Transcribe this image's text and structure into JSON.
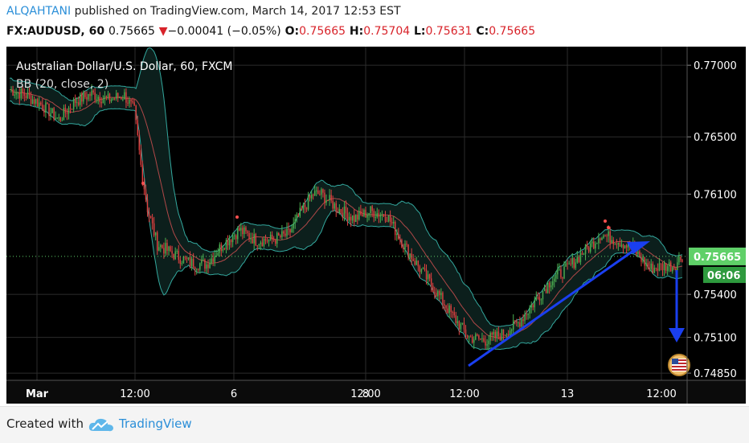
{
  "header": {
    "author": "ALQAHTANI",
    "published": "published on TradingView.com, March 14, 2017 12:53 EST",
    "symbol": "FX:AUDUSD, 60",
    "last": "0.75665",
    "change_arrow": "▼",
    "change": "−0.00041 (−0.05%)",
    "o_label": "O:",
    "o_value": "0.75665",
    "h_label": "H:",
    "h_value": "0.75704",
    "l_label": "L:",
    "l_value": "0.75631",
    "c_label": "C:",
    "c_value": "0.75665"
  },
  "chart_data": {
    "type": "candlestick",
    "title": "Australian Dollar/U.S. Dollar, 60, FXCM",
    "indicator": "BB (20, close, 2)",
    "y_ticks": [
      "0.77000",
      "0.76500",
      "0.76100",
      "0.75400",
      "0.75100",
      "0.74850"
    ],
    "y_tick_values": [
      0.77,
      0.765,
      0.761,
      0.754,
      0.751,
      0.7485
    ],
    "x_ticks": [
      "Mar",
      "12:00",
      "6",
      "12:00",
      "8",
      "12:00",
      "13",
      "12:00"
    ],
    "last_price_label": "0.75665",
    "countdown_label": "06:06",
    "ylim": [
      0.748,
      0.7713
    ],
    "price_path": [
      [
        0,
        0.7683
      ],
      [
        10,
        0.7679
      ],
      [
        20,
        0.7672
      ],
      [
        30,
        0.7662
      ],
      [
        40,
        0.7675
      ],
      [
        50,
        0.768
      ],
      [
        60,
        0.7676
      ],
      [
        70,
        0.7679
      ],
      [
        76,
        0.7668
      ],
      [
        80,
        0.763
      ],
      [
        84,
        0.76
      ],
      [
        90,
        0.7575
      ],
      [
        100,
        0.7568
      ],
      [
        110,
        0.7562
      ],
      [
        120,
        0.7561
      ],
      [
        130,
        0.7575
      ],
      [
        140,
        0.7585
      ],
      [
        150,
        0.7578
      ],
      [
        160,
        0.7578
      ],
      [
        170,
        0.7582
      ],
      [
        178,
        0.7598
      ],
      [
        185,
        0.761
      ],
      [
        190,
        0.761
      ],
      [
        200,
        0.76
      ],
      [
        210,
        0.7593
      ],
      [
        220,
        0.7598
      ],
      [
        230,
        0.7595
      ],
      [
        240,
        0.7575
      ],
      [
        250,
        0.7558
      ],
      [
        260,
        0.7542
      ],
      [
        270,
        0.7525
      ],
      [
        280,
        0.751
      ],
      [
        290,
        0.7508
      ],
      [
        300,
        0.7512
      ],
      [
        310,
        0.752
      ],
      [
        320,
        0.7535
      ],
      [
        330,
        0.755
      ],
      [
        340,
        0.7558
      ],
      [
        350,
        0.757
      ],
      [
        355,
        0.7575
      ],
      [
        360,
        0.7582
      ],
      [
        370,
        0.7578
      ],
      [
        380,
        0.7572
      ],
      [
        390,
        0.7558
      ],
      [
        400,
        0.756
      ],
      [
        405,
        0.756
      ],
      [
        410,
        0.7567
      ]
    ],
    "colors": {
      "background": "#000000",
      "up_candle": "#4caf50",
      "down_candle": "#e04040",
      "bollinger_band": "#33a89e",
      "bollinger_basis": "#b04848",
      "last_price": "#5fd068",
      "countdown": "#2e9a3e",
      "annotation_arrow": "#1a3ff0",
      "grid": "#2c2c2c"
    }
  },
  "footer": {
    "created_with": "Created with",
    "brand": "TradingView"
  }
}
